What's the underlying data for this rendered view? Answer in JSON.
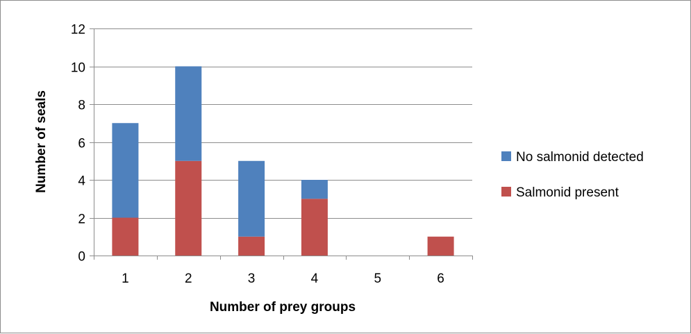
{
  "chart_data": {
    "type": "bar",
    "stacked": true,
    "categories": [
      "1",
      "2",
      "3",
      "4",
      "5",
      "6"
    ],
    "series": [
      {
        "name": "Salmonid present",
        "values": [
          2,
          5,
          1,
          3,
          0,
          1
        ],
        "color": "#c0504d"
      },
      {
        "name": "No salmonid detected",
        "values": [
          5,
          5,
          4,
          1,
          0,
          0
        ],
        "color": "#4f81bd"
      }
    ],
    "xlabel": "Number of prey groups",
    "ylabel": "Number of seals",
    "ylim": [
      0,
      12
    ],
    "yticks": [
      0,
      2,
      4,
      6,
      8,
      10,
      12
    ],
    "grid": true,
    "legend_position": "right",
    "legend_order": [
      "No salmonid detected",
      "Salmonid present"
    ]
  }
}
